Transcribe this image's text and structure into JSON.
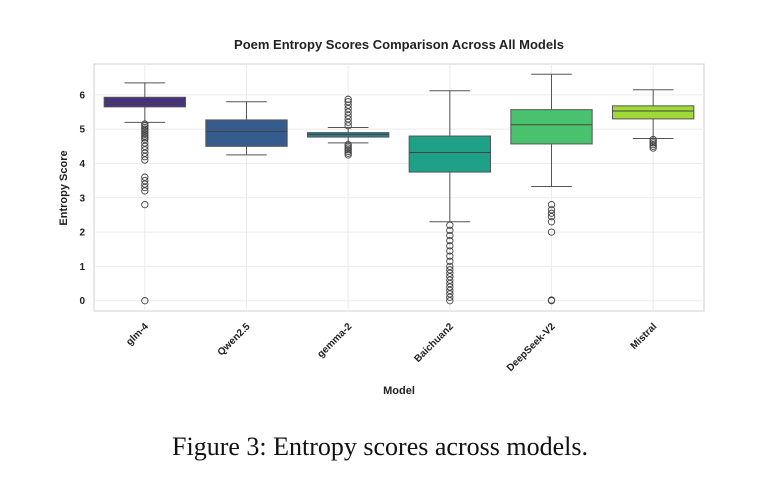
{
  "caption": "Figure 3: Entropy scores across models.",
  "chart_data": {
    "type": "box",
    "title": "Poem Entropy Scores Comparison Across All Models",
    "xlabel": "Model",
    "ylabel": "Entropy Score",
    "ylim": [
      -0.3,
      6.9
    ],
    "yticks": [
      0,
      1,
      2,
      3,
      4,
      5,
      6
    ],
    "grid": true,
    "categories": [
      "glm-4",
      "Qwen2.5",
      "gemma-2",
      "Baichuan2",
      "DeepSeek-V2",
      "Mistral"
    ],
    "colors": [
      "#46327e",
      "#365c8d",
      "#277f8e",
      "#1fa187",
      "#4ac16d",
      "#a0da39"
    ],
    "boxes": [
      {
        "name": "glm-4",
        "whisker_low": 5.2,
        "q1": 5.65,
        "median": 5.75,
        "q3": 5.93,
        "whisker_high": 6.35,
        "outliers": [
          5.15,
          5.1,
          5.05,
          5.0,
          4.95,
          4.9,
          4.85,
          4.8,
          4.75,
          4.7,
          4.6,
          4.5,
          4.4,
          4.3,
          4.2,
          4.1,
          3.6,
          3.5,
          3.4,
          3.3,
          3.2,
          2.8,
          0.0
        ]
      },
      {
        "name": "Qwen2.5",
        "whisker_low": 4.25,
        "q1": 4.5,
        "median": 4.93,
        "q3": 5.27,
        "whisker_high": 5.8,
        "outliers": []
      },
      {
        "name": "gemma-2",
        "whisker_low": 4.6,
        "q1": 4.77,
        "median": 4.85,
        "q3": 4.9,
        "whisker_high": 5.05,
        "outliers": [
          5.1,
          5.2,
          5.3,
          5.4,
          5.5,
          5.6,
          5.7,
          5.8,
          5.87,
          4.55,
          4.5,
          4.45,
          4.4,
          4.35,
          4.3,
          4.25
        ]
      },
      {
        "name": "Baichuan2",
        "whisker_low": 2.3,
        "q1": 3.75,
        "median": 4.32,
        "q3": 4.8,
        "whisker_high": 6.12,
        "outliers": [
          2.2,
          2.05,
          1.9,
          1.75,
          1.6,
          1.45,
          1.3,
          1.15,
          1.0,
          0.9,
          0.8,
          0.7,
          0.6,
          0.5,
          0.4,
          0.3,
          0.2,
          0.1,
          0.0
        ]
      },
      {
        "name": "DeepSeek-V2",
        "whisker_low": 3.33,
        "q1": 4.57,
        "median": 5.13,
        "q3": 5.57,
        "whisker_high": 6.6,
        "outliers": [
          2.8,
          2.65,
          2.55,
          2.45,
          2.3,
          2.0,
          0.02,
          0.0
        ]
      },
      {
        "name": "Mistral",
        "whisker_low": 4.73,
        "q1": 5.3,
        "median": 5.53,
        "q3": 5.68,
        "whisker_high": 6.15,
        "outliers": [
          4.7,
          4.65,
          4.6,
          4.55,
          4.5,
          4.45
        ]
      }
    ]
  }
}
